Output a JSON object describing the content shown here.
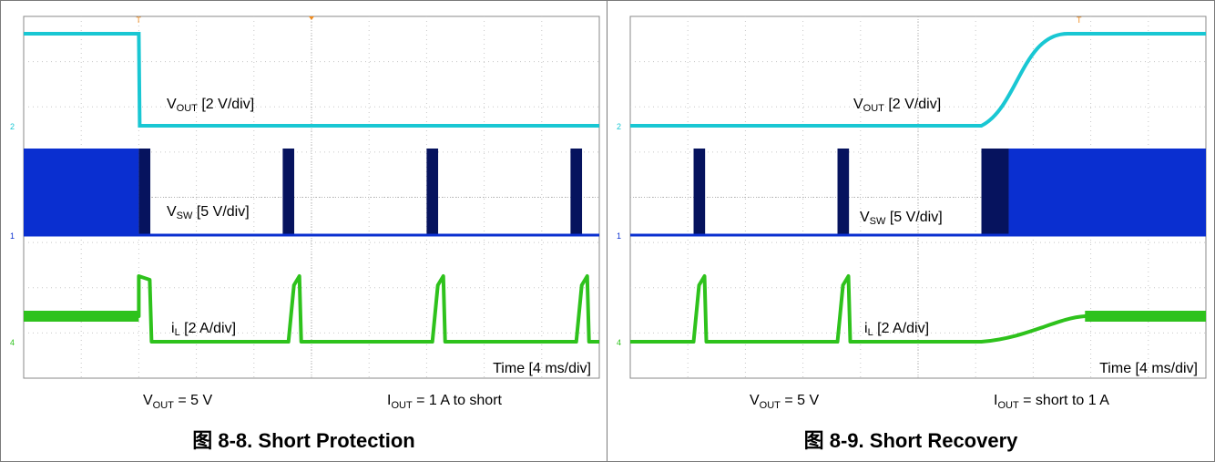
{
  "chart_data": [
    {
      "type": "line",
      "title": "图 8-8. Short Protection",
      "figure_label": "图 8-8.",
      "figure_name": "Short Protection",
      "time_label": "Time [4 ms/div]",
      "conditions": {
        "vout": "V_OUT = 5 V",
        "iout": "I_OUT = 1 A to short"
      },
      "xlim": [
        0,
        10
      ],
      "x_unit_per_div": "4 ms",
      "series": [
        {
          "name": "V_OUT [2 V/div]",
          "color": "#19c7d3",
          "scale": "2 V/div",
          "points": [
            [
              0,
              4.75
            ],
            [
              2.0,
              4.75
            ],
            [
              2.02,
              1.0
            ],
            [
              10,
              1.0
            ]
          ]
        },
        {
          "name": "V_SW [5 V/div]",
          "color": "#0a2fd0",
          "scale": "5 V/div",
          "bursts": [
            [
              0,
              2.0
            ],
            [
              2.0,
              2.2
            ],
            [
              4.5,
              4.7
            ],
            [
              7.0,
              7.2
            ],
            [
              9.5,
              9.7
            ]
          ]
        },
        {
          "name": "i_L [2 A/div]",
          "color": "#2ec21c",
          "scale": "2 A/div",
          "peaks_x": [
            2.0,
            4.6,
            7.1,
            9.6
          ]
        }
      ]
    },
    {
      "type": "line",
      "title": "图 8-9. Short Recovery",
      "figure_label": "图 8-9.",
      "figure_name": "Short Recovery",
      "time_label": "Time [4 ms/div]",
      "conditions": {
        "vout": "V_OUT = 5 V",
        "iout": "I_OUT = short to 1 A"
      },
      "xlim": [
        0,
        10
      ],
      "x_unit_per_div": "4 ms",
      "series": [
        {
          "name": "V_OUT [2 V/div]",
          "color": "#19c7d3",
          "scale": "2 V/div",
          "points": [
            [
              0,
              1.0
            ],
            [
              6.1,
              1.0
            ],
            [
              7.6,
              4.75
            ],
            [
              10,
              4.75
            ]
          ]
        },
        {
          "name": "V_SW [5 V/div]",
          "color": "#0a2fd0",
          "scale": "5 V/div",
          "bursts": [
            [
              1.1,
              1.3
            ],
            [
              3.6,
              3.8
            ],
            [
              6.1,
              10
            ]
          ]
        },
        {
          "name": "i_L [2 A/div]",
          "color": "#2ec21c",
          "scale": "2 A/div",
          "peaks_x": [
            1.1,
            3.6
          ]
        }
      ]
    }
  ],
  "labels": {
    "vout_main": "V",
    "vout_sub": "OUT",
    "vout_scale": " [2 V/div]",
    "vsw_main": "V",
    "vsw_sub": "SW",
    "vsw_scale": " [5 V/div]",
    "il_main": "i",
    "il_sub": "L",
    "il_scale": " [2 A/div]",
    "time": "Time [4 ms/div]"
  },
  "colors": {
    "grid_border": "#8a8a8a",
    "grid_dot": "#c8c8c8",
    "vout": "#19c7d3",
    "vsw": "#0a2fd0",
    "vsw_dark": "#06135e",
    "il": "#2ec21c",
    "marker": "#f08a1c"
  }
}
